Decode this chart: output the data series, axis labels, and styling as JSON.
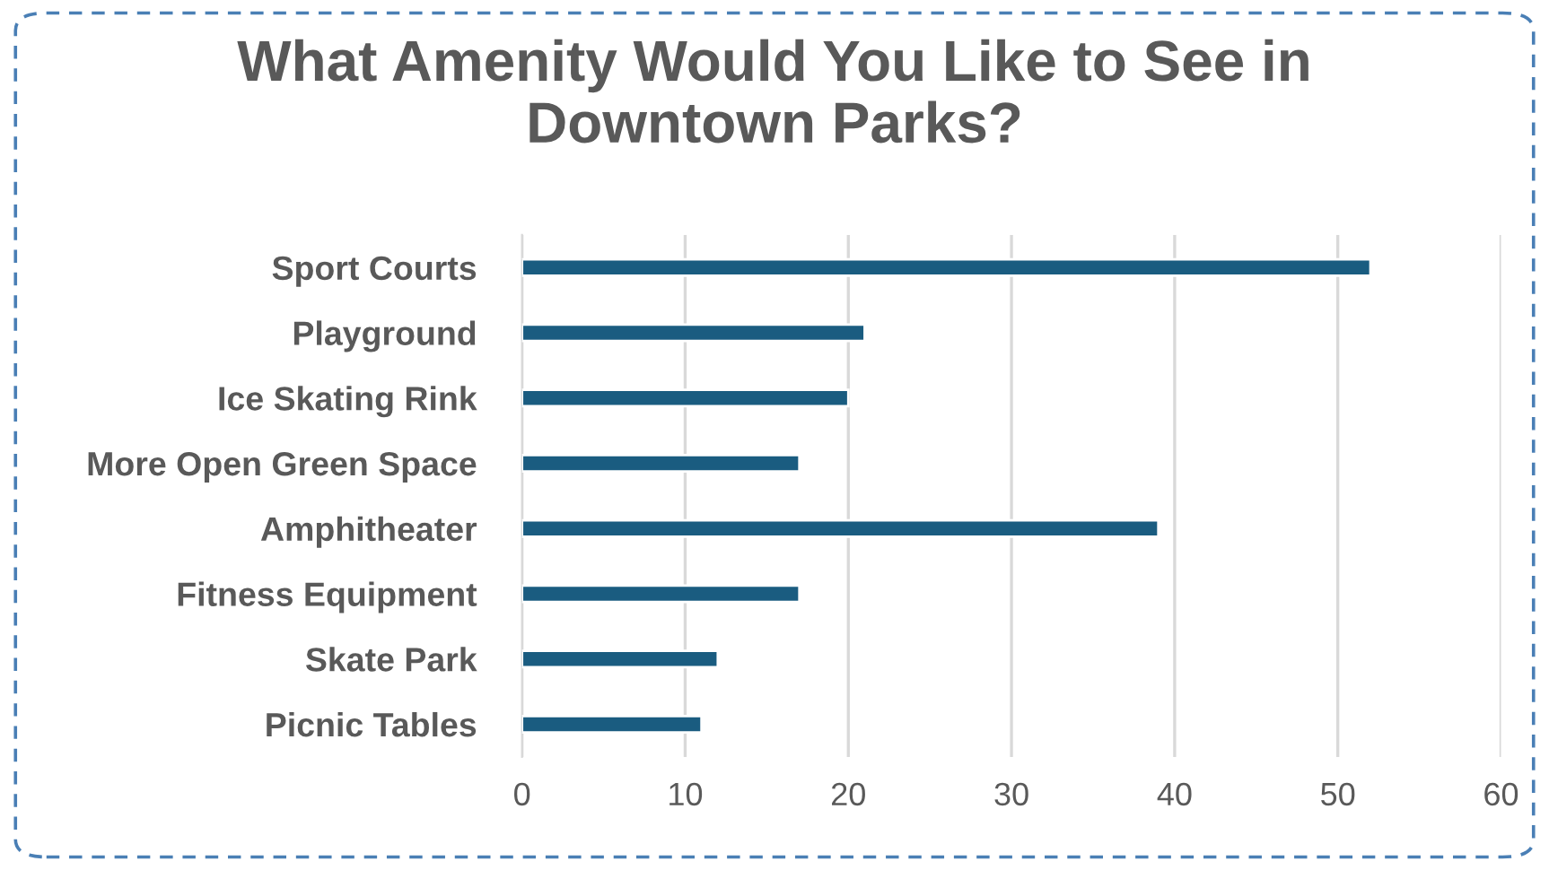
{
  "chart_data": {
    "type": "bar",
    "orientation": "horizontal",
    "title": "What Amenity Would You Like to See in\nDowntown Parks?",
    "categories": [
      "Sport Courts",
      "Playground",
      "Ice Skating Rink",
      "More Open Green Space",
      "Amphitheater",
      "Fitness Equipment",
      "Skate Park",
      "Picnic Tables"
    ],
    "values": [
      52,
      21,
      20,
      17,
      39,
      17,
      12,
      11
    ],
    "color": "#1a5c80",
    "xlim": [
      0,
      60
    ],
    "xticks": [
      0,
      10,
      20,
      30,
      40,
      50,
      60
    ],
    "grid": "x"
  }
}
